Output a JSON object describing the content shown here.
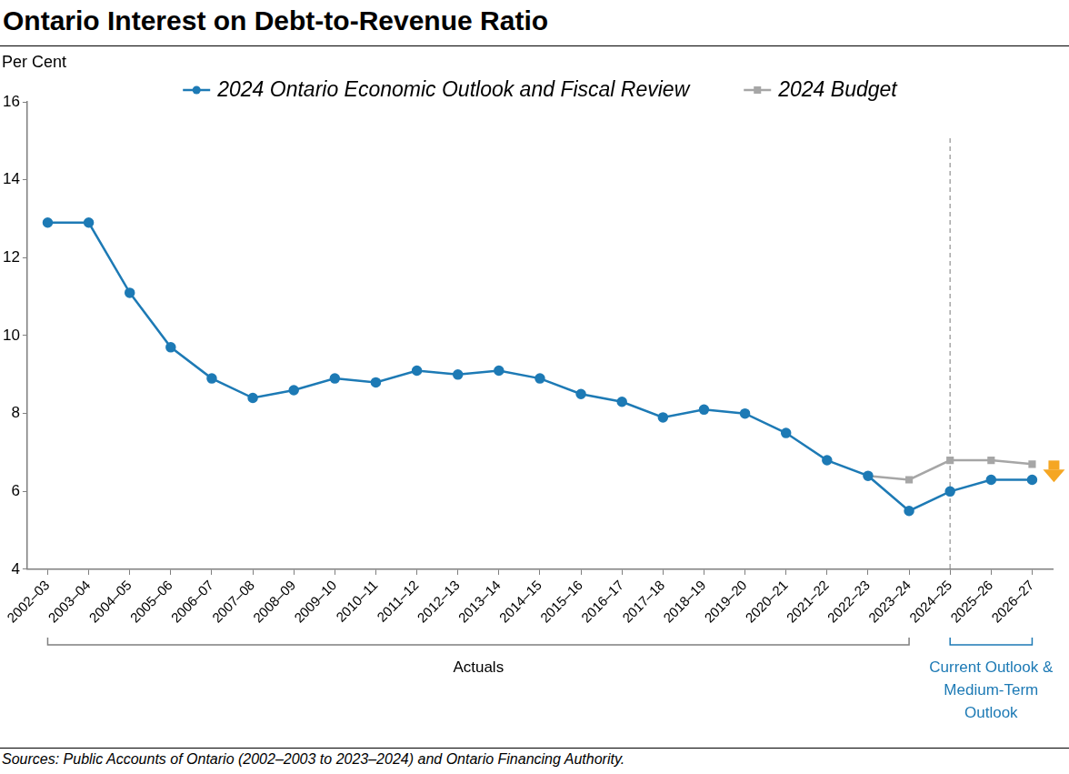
{
  "chart_data": {
    "type": "line",
    "title": "Ontario Interest on Debt-to-Revenue Ratio",
    "ylabel": "Per Cent",
    "source": "Sources: Public Accounts of Ontario (2002–2003 to 2023–2024) and Ontario Financing Authority.",
    "categories": [
      "2002–03",
      "2003–04",
      "2004–05",
      "2005–06",
      "2006–07",
      "2007–08",
      "2008–09",
      "2009–10",
      "2010–11",
      "2011–12",
      "2012–13",
      "2013–14",
      "2014–15",
      "2015–16",
      "2016–17",
      "2017–18",
      "2018–19",
      "2019–20",
      "2020–21",
      "2021–22",
      "2022–23",
      "2023–24",
      "2024–25",
      "2025–26",
      "2026–27"
    ],
    "series": [
      {
        "name": "2024 Ontario Economic Outlook and Fiscal Review",
        "color": "#1d7ab5",
        "marker": "circle",
        "values": [
          12.9,
          12.9,
          11.1,
          9.7,
          8.9,
          8.4,
          8.6,
          8.9,
          8.8,
          9.1,
          9.0,
          9.1,
          8.9,
          8.5,
          8.3,
          7.9,
          8.1,
          8.0,
          7.5,
          6.8,
          6.4,
          5.5,
          6.0,
          6.3,
          6.3
        ]
      },
      {
        "name": "2024 Budget",
        "color": "#a6a6a6",
        "marker": "square",
        "values": [
          null,
          null,
          null,
          null,
          null,
          null,
          null,
          null,
          null,
          null,
          null,
          null,
          null,
          null,
          null,
          null,
          null,
          null,
          null,
          null,
          6.4,
          6.3,
          6.8,
          6.8,
          6.7
        ]
      }
    ],
    "ylim": [
      4,
      16
    ],
    "yticks": [
      4,
      6,
      8,
      10,
      12,
      14,
      16
    ],
    "grid": false,
    "legend": "top",
    "annotations": [
      {
        "text": "Actuals",
        "from": "2002–03",
        "to": "2023–24"
      },
      {
        "text": "Current Outlook & Medium-Term Outlook",
        "from": "2024–25",
        "to": "2026–27"
      }
    ]
  }
}
